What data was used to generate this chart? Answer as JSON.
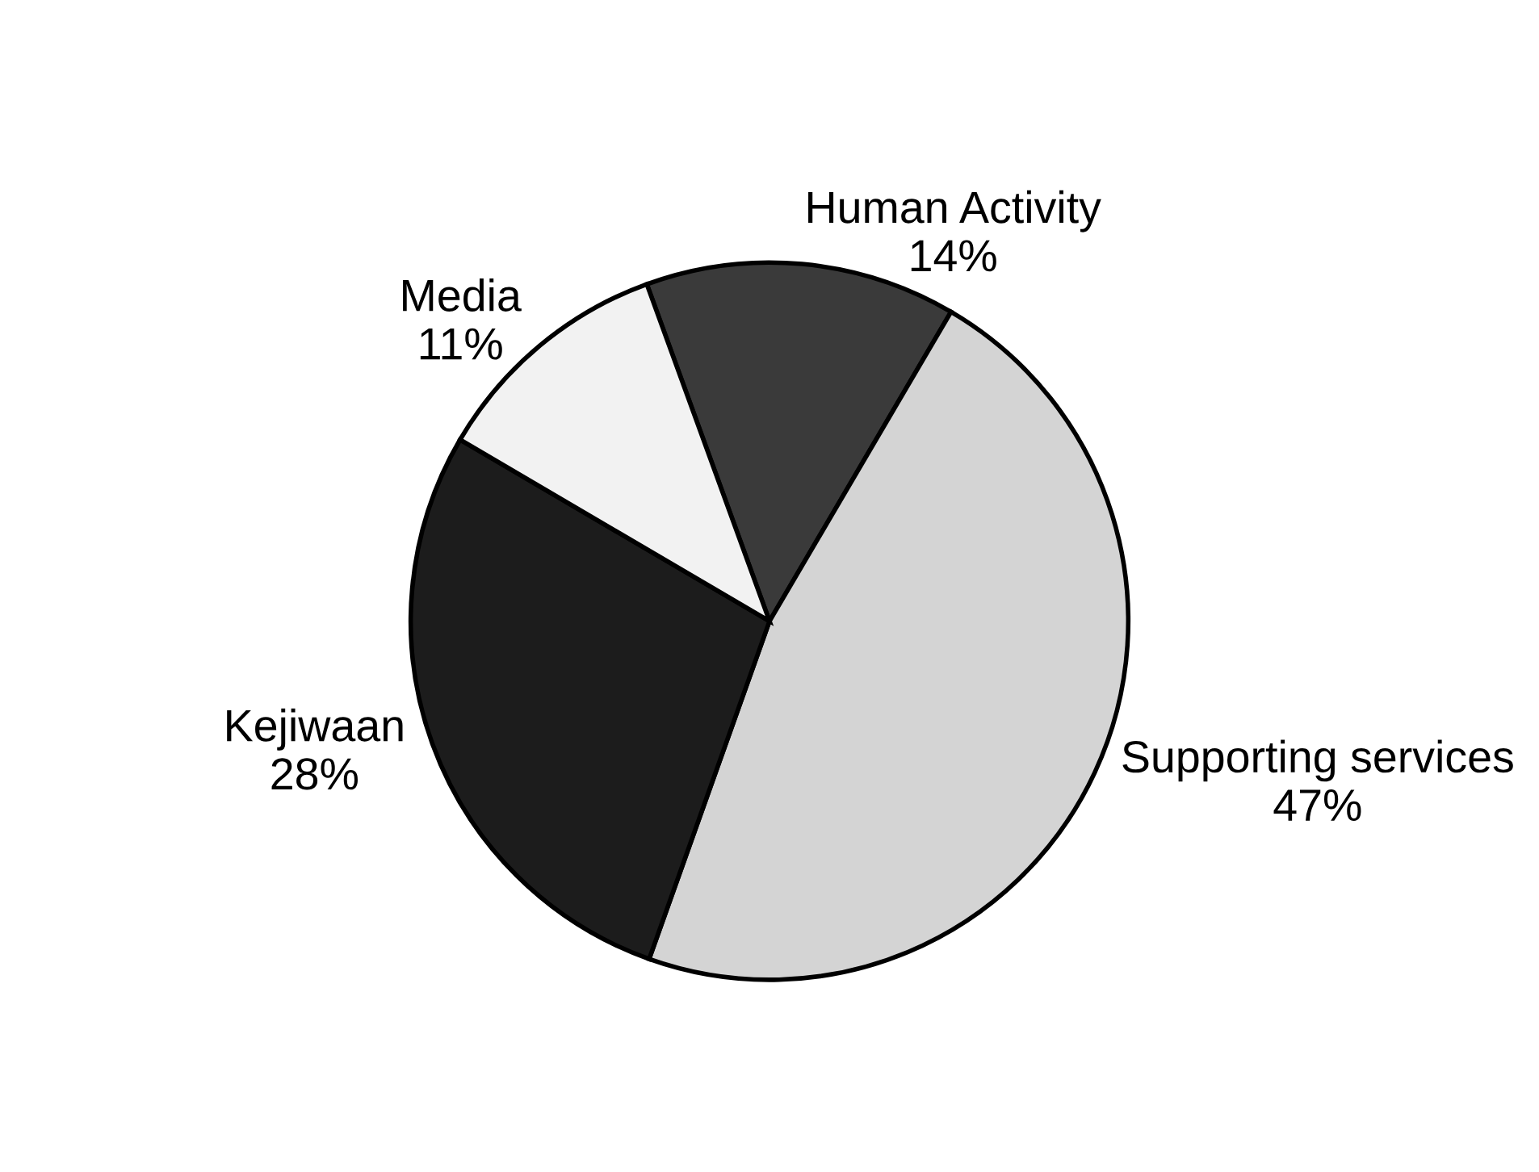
{
  "chart_data": {
    "type": "pie",
    "categories": [
      "Human Activity",
      "Supporting services",
      "Kejiwaan",
      "Media"
    ],
    "values": [
      14,
      47,
      28,
      11
    ],
    "colors": [
      "#3a3a3a",
      "#d4d4d4",
      "#1c1c1c",
      "#f2f2f2"
    ],
    "value_labels": [
      "14%",
      "47%",
      "28%",
      "11%"
    ]
  }
}
